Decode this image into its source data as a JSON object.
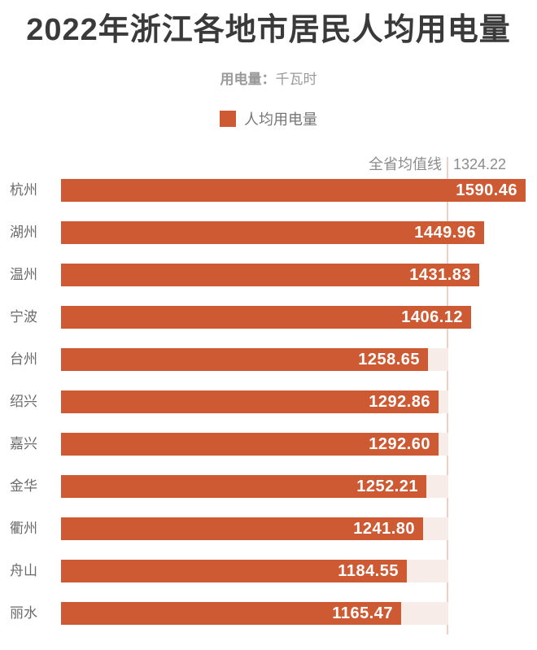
{
  "header": {
    "title": "2022年浙江各地市居民人均用电量",
    "unit_prefix": "用电量：",
    "unit_value": "千瓦时"
  },
  "legend": {
    "label": "人均用电量"
  },
  "chart_data": {
    "type": "bar",
    "orientation": "horizontal",
    "title": "2022年浙江各地市居民人均用电量",
    "unit": "千瓦时",
    "series_name": "人均用电量",
    "categories": [
      "杭州",
      "湖州",
      "温州",
      "宁波",
      "台州",
      "绍兴",
      "嘉兴",
      "金华",
      "衢州",
      "舟山",
      "丽水"
    ],
    "values": [
      1590.46,
      1449.96,
      1431.83,
      1406.12,
      1258.65,
      1292.86,
      1292.6,
      1252.21,
      1241.8,
      1184.55,
      1165.47
    ],
    "value_labels": [
      "1590.46",
      "1449.96",
      "1431.83",
      "1406.12",
      "1258.65",
      "1292.86",
      "1292.60",
      "1252.21",
      "1241.80",
      "1184.55",
      "1165.47"
    ],
    "reference_line": {
      "label": "全省均值线",
      "value": 1324.22,
      "value_text": "1324.22"
    },
    "xlim": [
      0,
      1848
    ],
    "legend_position": "top-center",
    "grid": false,
    "colors": {
      "bar": "#cd5a33",
      "track": "#f7ece8",
      "reference_line": "#f2d0c9",
      "title": "#3a3a3a",
      "subtitle": "#9a9a9a",
      "category_label": "#6b6b6b",
      "value_label": "#ffffff"
    }
  }
}
